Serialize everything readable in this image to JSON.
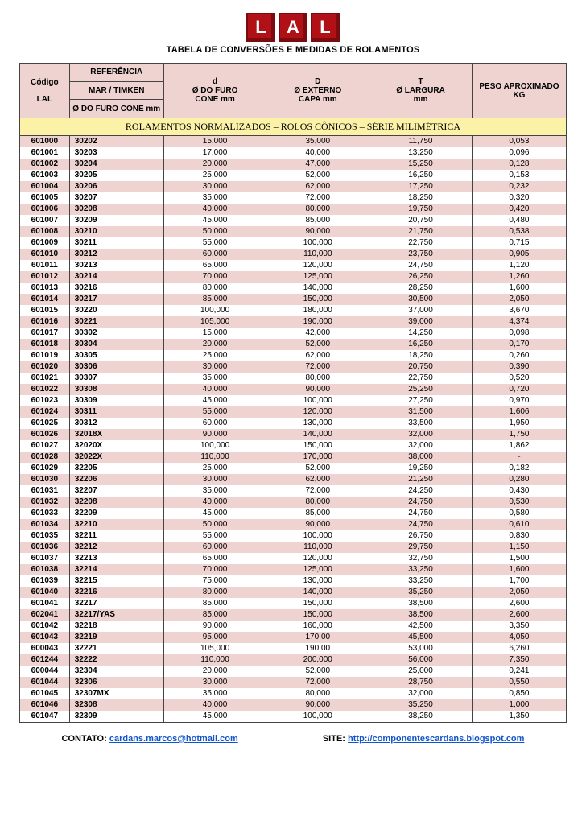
{
  "logo_letters": [
    "L",
    "A",
    "L"
  ],
  "main_title": "TABELA DE CONVERSÕES E MEDIDAS DE ROLAMENTOS",
  "header": {
    "codigo_top": "Código",
    "codigo_bottom": "LAL",
    "ref_top": "REFERÊNCIA",
    "ref_mid": "MAR / TIMKEN",
    "ref_bottom_a": "Ø DO FURO",
    "ref_bottom_b": "CONE mm",
    "d_top": "d",
    "d_mid": "Ø DO FURO",
    "d_bottom": "CONE mm",
    "D_top": "D",
    "D_mid": "Ø EXTERNO",
    "D_bottom": "CAPA  mm",
    "T_top": "T",
    "T_mid": "Ø LARGURA",
    "T_bottom": "mm",
    "peso_top": "PESO APROXIMADO",
    "peso_bottom": "KG"
  },
  "banner": "ROLAMENTOS NORMALIZADOS – ROLOS CÔNICOS – SÉRIE MILIMÉTRICA",
  "columns": [
    "codigo",
    "ref",
    "d",
    "D",
    "T",
    "peso"
  ],
  "rows": [
    [
      "601000",
      "30202",
      "15,000",
      "35,000",
      "11,750",
      "0,053"
    ],
    [
      "601001",
      "30203",
      "17,000",
      "40,000",
      "13,250",
      "0,096"
    ],
    [
      "601002",
      "30204",
      "20,000",
      "47,000",
      "15,250",
      "0,128"
    ],
    [
      "601003",
      "30205",
      "25,000",
      "52,000",
      "16,250",
      "0,153"
    ],
    [
      "601004",
      "30206",
      "30,000",
      "62,000",
      "17,250",
      "0,232"
    ],
    [
      "601005",
      "30207",
      "35,000",
      "72,000",
      "18,250",
      "0,320"
    ],
    [
      "601006",
      "30208",
      "40,000",
      "80,000",
      "19,750",
      "0,420"
    ],
    [
      "601007",
      "30209",
      "45,000",
      "85,000",
      "20,750",
      "0,480"
    ],
    [
      "601008",
      "30210",
      "50,000",
      "90,000",
      "21,750",
      "0,538"
    ],
    [
      "601009",
      "30211",
      "55,000",
      "100,000",
      "22,750",
      "0,715"
    ],
    [
      "601010",
      "30212",
      "60,000",
      "110,000",
      "23,750",
      "0,905"
    ],
    [
      "601011",
      "30213",
      "65,000",
      "120,000",
      "24,750",
      "1,120"
    ],
    [
      "601012",
      "30214",
      "70,000",
      "125,000",
      "26,250",
      "1,260"
    ],
    [
      "601013",
      "30216",
      "80,000",
      "140,000",
      "28,250",
      "1,600"
    ],
    [
      "601014",
      "30217",
      "85,000",
      "150,000",
      "30,500",
      "2,050"
    ],
    [
      "601015",
      "30220",
      "100,000",
      "180,000",
      "37,000",
      "3,670"
    ],
    [
      "601016",
      "30221",
      "105,000",
      "190,000",
      "39,000",
      "4,374"
    ],
    [
      "601017",
      "30302",
      "15,000",
      "42,000",
      "14,250",
      "0,098"
    ],
    [
      "601018",
      "30304",
      "20,000",
      "52,000",
      "16,250",
      "0,170"
    ],
    [
      "601019",
      "30305",
      "25,000",
      "62,000",
      "18,250",
      "0,260"
    ],
    [
      "601020",
      "30306",
      "30,000",
      "72,000",
      "20,750",
      "0,390"
    ],
    [
      "601021",
      "30307",
      "35,000",
      "80,000",
      "22,750",
      "0,520"
    ],
    [
      "601022",
      "30308",
      "40,000",
      "90,000",
      "25,250",
      "0,720"
    ],
    [
      "601023",
      "30309",
      "45,000",
      "100,000",
      "27,250",
      "0,970"
    ],
    [
      "601024",
      "30311",
      "55,000",
      "120,000",
      "31,500",
      "1,606"
    ],
    [
      "601025",
      "30312",
      "60,000",
      "130,000",
      "33,500",
      "1,950"
    ],
    [
      "601026",
      "32018X",
      "90,000",
      "140,000",
      "32,000",
      "1,750"
    ],
    [
      "601027",
      "32020X",
      "100,000",
      "150,000",
      "32,000",
      "1,862"
    ],
    [
      "601028",
      "32022X",
      "110,000",
      "170,000",
      "38,000",
      "-"
    ],
    [
      "601029",
      "32205",
      "25,000",
      "52,000",
      "19,250",
      "0,182"
    ],
    [
      "601030",
      "32206",
      "30,000",
      "62,000",
      "21,250",
      "0,280"
    ],
    [
      "601031",
      "32207",
      "35,000",
      "72,000",
      "24,250",
      "0,430"
    ],
    [
      "601032",
      "32208",
      "40,000",
      "80,000",
      "24,750",
      "0,530"
    ],
    [
      "601033",
      "32209",
      "45,000",
      "85,000",
      "24,750",
      "0,580"
    ],
    [
      "601034",
      "32210",
      "50,000",
      "90,000",
      "24,750",
      "0,610"
    ],
    [
      "601035",
      "32211",
      "55,000",
      "100,000",
      "26,750",
      "0,830"
    ],
    [
      "601036",
      "32212",
      "60,000",
      "110,000",
      "29,750",
      "1,150"
    ],
    [
      "601037",
      "32213",
      "65,000",
      "120,000",
      "32,750",
      "1,500"
    ],
    [
      "601038",
      "32214",
      "70,000",
      "125,000",
      "33,250",
      "1,600"
    ],
    [
      "601039",
      "32215",
      "75,000",
      "130,000",
      "33,250",
      "1,700"
    ],
    [
      "601040",
      "32216",
      "80,000",
      "140,000",
      "35,250",
      "2,050"
    ],
    [
      "601041",
      "32217",
      "85,000",
      "150,000",
      "38,500",
      "2,600"
    ],
    [
      "602041",
      "32217/YAS",
      "85,000",
      "150,000",
      "38,500",
      "2,600"
    ],
    [
      "601042",
      "32218",
      "90,000",
      "160,000",
      "42,500",
      "3,350"
    ],
    [
      "601043",
      "32219",
      "95,000",
      "170,00",
      "45,500",
      "4,050"
    ],
    [
      "600043",
      "32221",
      "105,000",
      "190,00",
      "53,000",
      "6,260"
    ],
    [
      "601244",
      "32222",
      "110,000",
      "200,000",
      "56,000",
      "7,350"
    ],
    [
      "600044",
      "32304",
      "20,000",
      "52,000",
      "25,000",
      "0,241"
    ],
    [
      "601044",
      "32306",
      "30,000",
      "72,000",
      "28,750",
      "0,550"
    ],
    [
      "601045",
      "32307MX",
      "35,000",
      "80,000",
      "32,000",
      "0,850"
    ],
    [
      "601046",
      "32308",
      "40,000",
      "90,000",
      "35,250",
      "1,000"
    ],
    [
      "601047",
      "32309",
      "45,000",
      "100,000",
      "38,250",
      "1,350"
    ]
  ],
  "footer": {
    "contato_label": "CONTATO:",
    "contato_email": "cardans.marcos@hotmail.com",
    "site_label": "SITE:",
    "site_url": "http://componentescardans.blogspot.com"
  },
  "colors": {
    "header_bg": "#eed3d1",
    "banner_bg": "#fbf2a7",
    "stripe_bg": "#eed3d1",
    "logo_red": "#b11116",
    "link": "#1155cc"
  }
}
